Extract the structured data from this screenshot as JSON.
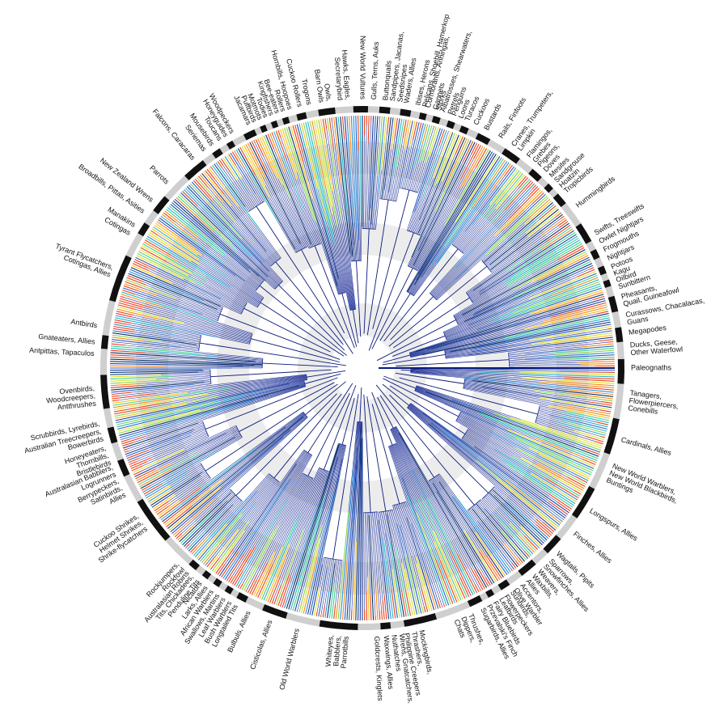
{
  "tree": {
    "clades": [
      [
        "Paleognaths"
      ],
      [
        "Tanagers,",
        "Flowerpiercers,",
        "Conebills"
      ],
      [
        "Cardinals, Allies"
      ],
      [
        "New World Warblers,",
        "New World Blackbirds,",
        "Buntings"
      ],
      [
        "Longspurs, Allies"
      ],
      [
        "Finches, Allies"
      ],
      [
        "Wagtails, Pipits"
      ],
      [
        "Sparrows,",
        "Snowfinches, Allies"
      ],
      [
        "Weavers,",
        "Waxbills,",
        "Allies"
      ],
      [
        "Accentors,",
        "Olive Warbler"
      ],
      [
        "Sunbirds,",
        "Flowerpeckers"
      ],
      [
        "Leafbirds"
      ],
      [
        "Fairy Bluebirds"
      ],
      [
        "Przevalski's Finch"
      ],
      [
        "Sugarbirds, Allies"
      ],
      [
        "Thrushes,",
        "Dippers,",
        "Chats"
      ],
      [
        "Mockingbirds,",
        "Thrashers,",
        "Philippine Creepers"
      ],
      [
        "Wrens, Gnatcatchers,",
        "Nuthatches"
      ],
      [
        "Waxwings, Allies"
      ],
      [
        "Goldcrests, Kinglets"
      ],
      [
        "Whiteyes,",
        "Babblers,",
        "Parrotbills"
      ],
      [
        "Old World Warblers"
      ],
      [
        "Cisticolas, Allies"
      ],
      [
        "Bulbuls, Allies"
      ],
      [
        "Longtailed Tits"
      ],
      [
        "Bush Warblers"
      ],
      [
        "Leaf Warblers"
      ],
      [
        "Swallows, Martins"
      ],
      [
        "African Warblers"
      ],
      [
        "Larks, Allies"
      ],
      [
        "Nicators"
      ],
      [
        "Tits, Chickadees,",
        "Penduline Tits"
      ],
      [
        "Australasian Robins"
      ],
      [
        "Rockjumpers,",
        "Rockfowl"
      ],
      [
        "Cuckoo Shrikes,",
        "Helmet Shrikes,",
        "Shrike-flycatchers"
      ],
      [
        "Berrypeckers,",
        "Satinbirds,",
        "Allies"
      ],
      [
        "Australasian Babblers,",
        "Logrunners"
      ],
      [
        "Honeyeaters,",
        "Thornbills,",
        "Bristlebirds"
      ],
      [
        "Australian Treecreepers,",
        "Bowerbirds"
      ],
      [
        "Scrubbirds, Lyrebirds,"
      ],
      [
        "Ovenbirds,",
        "Woodcreepers,",
        "Antthrushes"
      ],
      [
        "Antpittas, Tapaculos"
      ],
      [
        "Gnateaters, Allies"
      ],
      [
        "Antbirds"
      ],
      [
        "Tyrant Flycatchers,",
        "Cotingas, Allies"
      ],
      [
        "Cotingas"
      ],
      [
        "Manakins"
      ],
      [
        "Broadbills, Pittas, Asities"
      ],
      [
        "New Zealand Wrens"
      ],
      [
        "Parrots"
      ],
      [
        "Falcons, Caracaras"
      ],
      [
        "Seriemas"
      ],
      [
        "Mousebirds"
      ],
      [
        "Toucans"
      ],
      [
        "Honeyguides"
      ],
      [
        "Woodpeckers"
      ],
      [
        "Jacamars"
      ],
      [
        "Puffbirds"
      ],
      [
        "Motmots"
      ],
      [
        "Todies"
      ],
      [
        "Kingfishers"
      ],
      [
        "Bee-eaters"
      ],
      [
        "Rollers"
      ],
      [
        "Hornbills, Hoopoes"
      ],
      [
        "Cuckoo Rollers"
      ],
      [
        "Trogons"
      ],
      [
        "Owls,",
        "Barn Owls"
      ],
      [
        "Hawks, Eagles,",
        "Secretarybird"
      ],
      [
        "New World Vultures"
      ],
      [
        "Gulls, Terns, Auks"
      ],
      [
        "Buttonquails"
      ],
      [
        "Sandpipers, Jacanas,",
        "Seedsnipes"
      ],
      [
        "Waders, Allies"
      ],
      [
        "Ibises, Herons"
      ],
      [
        "Pelicans, Shoebill, Hamerkop"
      ],
      [
        "Cormorants, Anhingas,",
        "Gannets"
      ],
      [
        "Storks"
      ],
      [
        "Albatrosses, Shearwaters,",
        "Petrels"
      ],
      [
        "Penguins"
      ],
      [
        "Loons"
      ],
      [
        "Turacos"
      ],
      [
        "Cuckoos"
      ],
      [
        "Bustards"
      ],
      [
        "Rails, Finfoots"
      ],
      [
        "Cranes, Trumpeters,",
        "Limpkin"
      ],
      [
        "Flamingos,",
        "Grebes"
      ],
      [
        "Pigeons,",
        "Doves"
      ],
      [
        "Mesites"
      ],
      [
        "Sandgrouse"
      ],
      [
        "Hoatzin"
      ],
      [
        "Tropicbirds"
      ],
      [
        "Hummingbirds"
      ],
      [
        "Swifts, Treeswifts"
      ],
      [
        "Owlet Nightjars"
      ],
      [
        "Frogmouths"
      ],
      [
        "Nightjars"
      ],
      [
        "Potoos"
      ],
      [
        "Kagu"
      ],
      [
        "Oilbird"
      ],
      [
        "Sunbittern"
      ],
      [
        "Pheasants,",
        "Quail, Guineafowl"
      ],
      [
        "Curassows, Chacalacas,",
        "Guans"
      ],
      [
        "Megapodes"
      ],
      [
        "Ducks, Geese,",
        "Other Waterfowl"
      ]
    ]
  }
}
